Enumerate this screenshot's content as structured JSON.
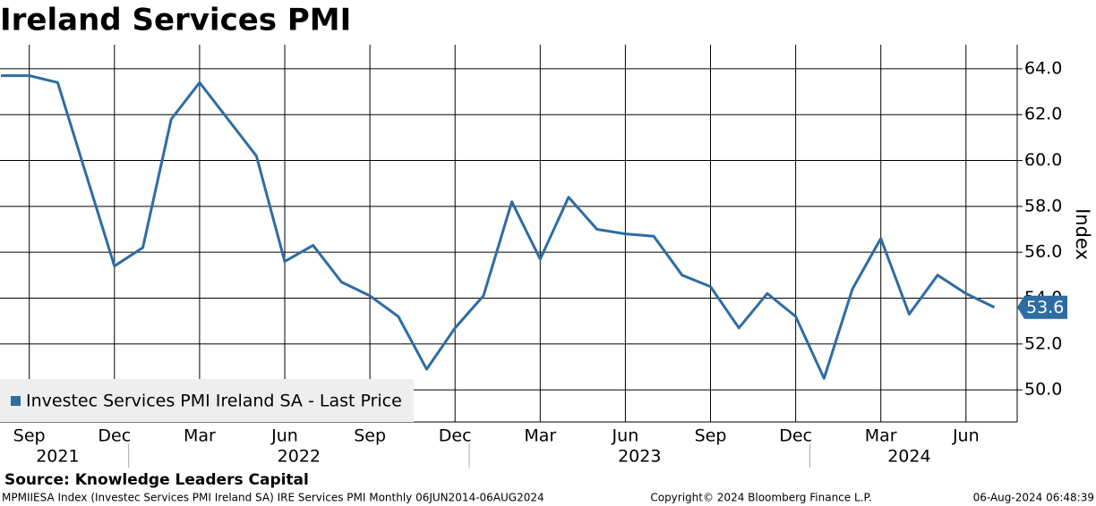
{
  "chart_data": {
    "type": "line",
    "title": "Ireland Services PMI",
    "y_axis_label": "Index",
    "source": "Source: Knowledge Leaders Capital",
    "footer_left": "MPMIIESA Index (Investec Services PMI Ireland SA) IRE Services PMI  Monthly 06JUN2014-06AUG2024",
    "footer_center": "Copyright© 2024 Bloomberg Finance L.P.",
    "footer_right": "06-Aug-2024 06:48:39",
    "x": [
      "2021-08",
      "2021-09",
      "2021-10",
      "2021-11",
      "2021-12",
      "2022-01",
      "2022-02",
      "2022-03",
      "2022-04",
      "2022-05",
      "2022-06",
      "2022-07",
      "2022-08",
      "2022-09",
      "2022-10",
      "2022-11",
      "2022-12",
      "2023-01",
      "2023-02",
      "2023-03",
      "2023-04",
      "2023-05",
      "2023-06",
      "2023-07",
      "2023-08",
      "2023-09",
      "2023-10",
      "2023-11",
      "2023-12",
      "2024-01",
      "2024-02",
      "2024-03",
      "2024-04",
      "2024-05",
      "2024-06",
      "2024-07"
    ],
    "series": [
      {
        "name": "Investec Services PMI Ireland SA - Last Price",
        "color": "#2e6ca4",
        "values": [
          63.7,
          63.7,
          63.4,
          59.4,
          55.4,
          56.2,
          61.8,
          63.4,
          61.8,
          60.2,
          55.6,
          56.3,
          54.7,
          54.1,
          53.2,
          50.9,
          52.7,
          54.1,
          58.2,
          55.7,
          58.4,
          57.0,
          56.8,
          56.7,
          55.0,
          54.5,
          52.7,
          54.2,
          53.2,
          50.5,
          54.4,
          56.6,
          53.3,
          55.0,
          54.2,
          53.6
        ]
      }
    ],
    "ylim": [
      48.6,
      65.05
    ],
    "yticks": [
      {
        "value": 50,
        "label": "50.0"
      },
      {
        "value": 52,
        "label": "52.0"
      },
      {
        "value": 54,
        "label": "54.0"
      },
      {
        "value": 56,
        "label": "56.0"
      },
      {
        "value": 58,
        "label": "58.0"
      },
      {
        "value": 60,
        "label": "60.0"
      },
      {
        "value": 62,
        "label": "62.0"
      },
      {
        "value": 64,
        "label": "64.0"
      }
    ],
    "xticks": [
      {
        "value": "2021-09",
        "label": "Sep"
      },
      {
        "value": "2021-12",
        "label": "Dec"
      },
      {
        "value": "2022-03",
        "label": "Mar"
      },
      {
        "value": "2022-06",
        "label": "Jun"
      },
      {
        "value": "2022-09",
        "label": "Sep"
      },
      {
        "value": "2022-12",
        "label": "Dec"
      },
      {
        "value": "2023-03",
        "label": "Mar"
      },
      {
        "value": "2023-06",
        "label": "Jun"
      },
      {
        "value": "2023-09",
        "label": "Sep"
      },
      {
        "value": "2023-12",
        "label": "Dec"
      },
      {
        "value": "2024-03",
        "label": "Mar"
      },
      {
        "value": "2024-06",
        "label": "Jun"
      }
    ],
    "x_year_labels": [
      "2021",
      "2022",
      "2023",
      "2024"
    ],
    "grid": true,
    "legend": "lower-left"
  }
}
